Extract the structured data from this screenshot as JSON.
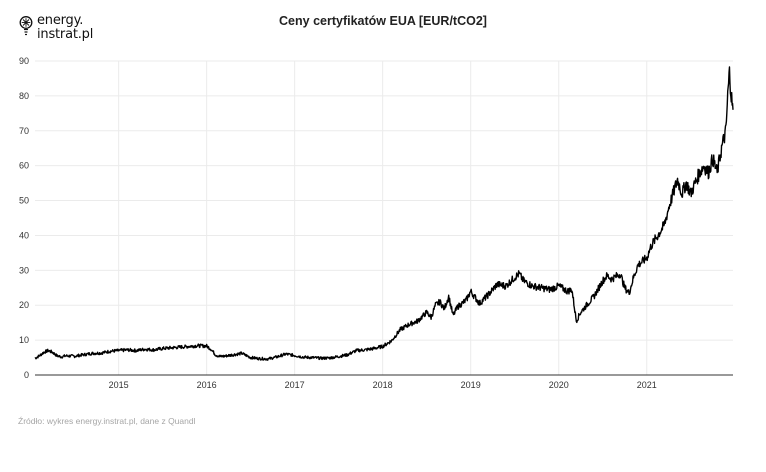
{
  "brand": {
    "line1": "energy.",
    "line2": "instrat.pl"
  },
  "colors": {
    "line": "#000000",
    "grid": "#ebebeb",
    "axis": "#333333",
    "source": "#a6a6a6"
  },
  "source_note": "Źródło: wykres energy.instrat.pl, dane z Quandl",
  "chart_data": {
    "type": "line",
    "title": "Ceny certyfikatów EUA [EUR/tCO2]",
    "xlabel": "",
    "ylabel": "",
    "xlim": [
      2014.05,
      2021.98
    ],
    "ylim": [
      0,
      90
    ],
    "yticks": [
      0,
      10,
      20,
      30,
      40,
      50,
      60,
      70,
      80,
      90
    ],
    "xticks": [
      2015,
      2016,
      2017,
      2018,
      2019,
      2020,
      2021
    ],
    "xtick_labels": [
      "2015",
      "2016",
      "2017",
      "2018",
      "2019",
      "2020",
      "2021"
    ],
    "grid": true,
    "legend": "none",
    "series": [
      {
        "x": [
          2014.05,
          2014.1,
          2014.15,
          2014.2,
          2014.25,
          2014.3,
          2014.35,
          2014.4,
          2014.5,
          2014.6,
          2014.7,
          2014.8,
          2014.9,
          2015.0,
          2015.1,
          2015.2,
          2015.3,
          2015.4,
          2015.5,
          2015.6,
          2015.7,
          2015.8,
          2015.9,
          2016.0,
          2016.05,
          2016.1,
          2016.15,
          2016.2,
          2016.3,
          2016.4,
          2016.5,
          2016.6,
          2016.7,
          2016.8,
          2016.9,
          2017.0,
          2017.1,
          2017.2,
          2017.3,
          2017.4,
          2017.5,
          2017.6,
          2017.7,
          2017.8,
          2017.9,
          2018.0,
          2018.1,
          2018.2,
          2018.3,
          2018.4,
          2018.5,
          2018.55,
          2018.6,
          2018.65,
          2018.7,
          2018.75,
          2018.8,
          2018.85,
          2018.9,
          2018.95,
          2019.0,
          2019.1,
          2019.2,
          2019.3,
          2019.4,
          2019.5,
          2019.55,
          2019.6,
          2019.7,
          2019.8,
          2019.9,
          2020.0,
          2020.1,
          2020.15,
          2020.2,
          2020.25,
          2020.3,
          2020.4,
          2020.5,
          2020.55,
          2020.6,
          2020.7,
          2020.75,
          2020.8,
          2020.85,
          2020.9,
          2021.0,
          2021.05,
          2021.1,
          2021.15,
          2021.2,
          2021.25,
          2021.3,
          2021.35,
          2021.4,
          2021.45,
          2021.5,
          2021.55,
          2021.6,
          2021.65,
          2021.7,
          2021.75,
          2021.8,
          2021.85,
          2021.9,
          2021.92,
          2021.94,
          2021.96,
          2021.98
        ],
        "y": [
          4.8,
          5.5,
          6.5,
          7.0,
          6.5,
          5.5,
          5.2,
          5.5,
          5.4,
          5.8,
          6.2,
          6.3,
          6.8,
          7.0,
          7.2,
          7.0,
          7.4,
          7.2,
          7.6,
          7.8,
          8.0,
          8.2,
          8.4,
          8.3,
          7.4,
          5.8,
          5.3,
          5.4,
          5.8,
          6.2,
          5.0,
          4.7,
          4.6,
          5.2,
          6.0,
          5.6,
          5.1,
          5.0,
          4.8,
          4.9,
          5.3,
          5.8,
          7.0,
          7.2,
          7.6,
          8.2,
          9.8,
          13.0,
          14.5,
          15.5,
          18.0,
          16.5,
          20.0,
          21.0,
          19.0,
          22.5,
          17.0,
          19.5,
          20.5,
          21.5,
          24.0,
          20.5,
          23.0,
          26.0,
          25.5,
          28.0,
          29.0,
          27.0,
          25.5,
          25.0,
          24.5,
          25.5,
          24.0,
          24.5,
          15.5,
          18.0,
          19.5,
          22.5,
          27.0,
          28.5,
          27.5,
          29.0,
          25.0,
          23.5,
          28.0,
          31.5,
          33.5,
          37.0,
          39.0,
          41.0,
          43.0,
          48.0,
          52.0,
          56.0,
          52.0,
          55.0,
          52.0,
          55.0,
          58.0,
          60.0,
          58.0,
          62.0,
          58.0,
          65.0,
          70.0,
          80.0,
          87.0,
          80.0,
          76.0
        ]
      }
    ]
  }
}
